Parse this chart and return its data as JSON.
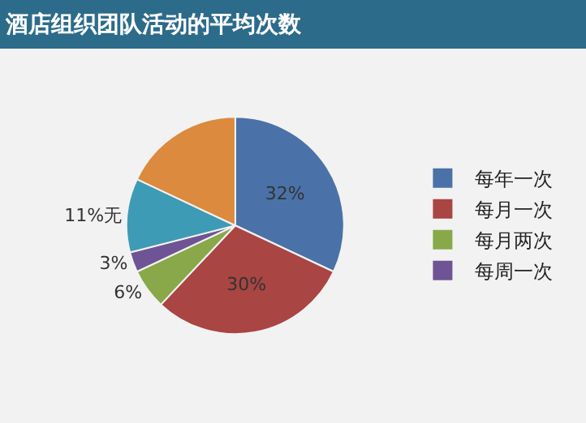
{
  "chart_data": {
    "type": "pie",
    "title": "酒店组织团队活动的平均次数",
    "categories": [
      "每年一次",
      "每月一次",
      "每月两次",
      "每周一次",
      null,
      null
    ],
    "values": [
      32,
      30,
      6,
      3,
      11,
      18
    ],
    "value_labels": [
      "32%",
      "30%",
      "6%",
      "3%",
      "11%无",
      null
    ],
    "colors": [
      "#4a72a8",
      "#a94543",
      "#88a84a",
      "#6e5494",
      "#3e9bb5",
      "#dc8a3e"
    ],
    "legend": "right"
  }
}
